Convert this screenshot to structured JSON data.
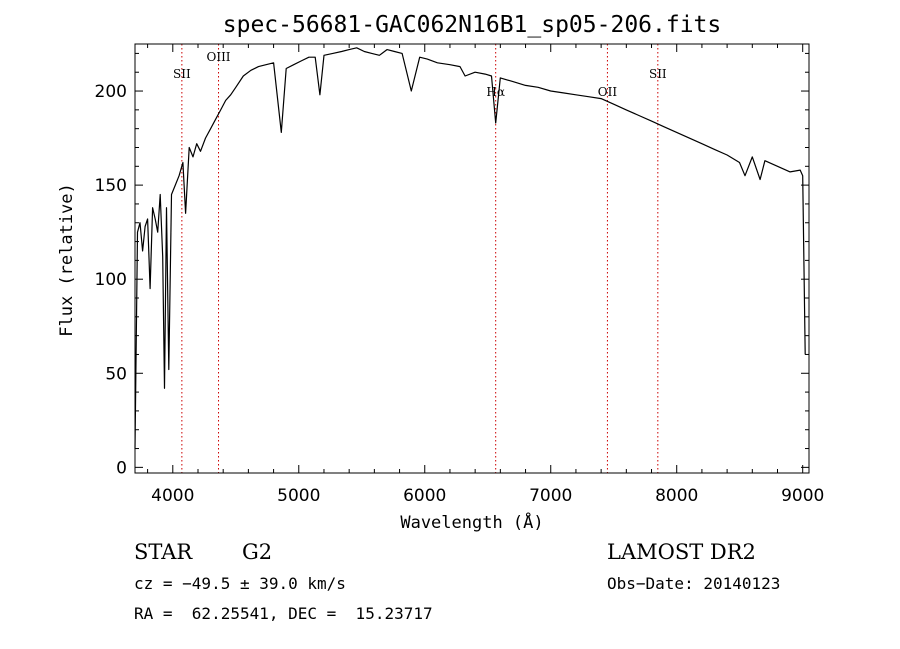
{
  "chart_data": {
    "type": "line",
    "title": "spec-56681-GAC062N16B1_sp05-206.fits",
    "xlabel": "Wavelength (Å)",
    "ylabel": "Flux (relative)",
    "xlim": [
      3700,
      9050
    ],
    "ylim": [
      -3,
      225
    ],
    "xticks": [
      4000,
      5000,
      6000,
      7000,
      8000,
      9000
    ],
    "yticks": [
      0,
      50,
      100,
      150,
      200
    ],
    "grid": false,
    "line_color": "#000000",
    "marker_color": "#cc0000",
    "series": [
      {
        "x": [
          3700,
          3720,
          3740,
          3760,
          3780,
          3800,
          3820,
          3840,
          3860,
          3880,
          3900,
          3920,
          3934,
          3950,
          3968,
          3990,
          4020,
          4050,
          4080,
          4102,
          4130,
          4160,
          4190,
          4220,
          4260,
          4300,
          4340,
          4380,
          4420,
          4460,
          4500,
          4560,
          4620,
          4680,
          4740,
          4800,
          4861,
          4900,
          4960,
          5020,
          5080,
          5130,
          5168,
          5200,
          5270,
          5340,
          5400,
          5460,
          5520,
          5580,
          5640,
          5700,
          5760,
          5820,
          5893,
          5960,
          6020,
          6100,
          6200,
          6280,
          6320,
          6400,
          6480,
          6530,
          6563,
          6600,
          6700,
          6800,
          6900,
          7000,
          7100,
          7200,
          7300,
          7400,
          7500,
          7600,
          7700,
          7800,
          7900,
          8000,
          8100,
          8200,
          8300,
          8400,
          8498,
          8542,
          8600,
          8662,
          8700,
          8800,
          8900,
          8980,
          9000,
          9020
        ],
        "y": [
          10,
          125,
          130,
          115,
          128,
          132,
          95,
          138,
          132,
          125,
          145,
          112,
          42,
          138,
          52,
          145,
          150,
          155,
          162,
          135,
          170,
          165,
          172,
          168,
          175,
          180,
          185,
          190,
          195,
          198,
          202,
          208,
          211,
          213,
          214,
          215,
          178,
          212,
          214,
          216,
          218,
          218,
          198,
          219,
          220,
          221,
          222,
          223,
          221,
          220,
          219,
          222,
          221,
          220,
          200,
          218,
          217,
          215,
          214,
          213,
          208,
          210,
          209,
          208,
          183,
          207,
          205,
          203,
          202,
          200,
          199,
          198,
          197,
          196,
          193,
          190,
          187,
          184,
          181,
          178,
          175,
          172,
          169,
          166,
          162,
          155,
          165,
          153,
          163,
          160,
          157,
          158,
          155,
          60
        ]
      }
    ],
    "lines": [
      {
        "label": "SII",
        "x": 4072
      },
      {
        "label": "OIII",
        "x": 4363
      },
      {
        "label": "Hα",
        "x": 6563
      },
      {
        "label": "OII",
        "x": 7450
      },
      {
        "label": "SII",
        "x": 7850
      }
    ]
  },
  "info": {
    "class_label": "STAR",
    "subclass": "G2",
    "survey": "LAMOST DR2",
    "cz": "cz = −49.5 ± 39.0 km/s",
    "obs_date": "Obs−Date: 20140123",
    "coords": "RA =  62.25541, DEC =  15.23717"
  }
}
